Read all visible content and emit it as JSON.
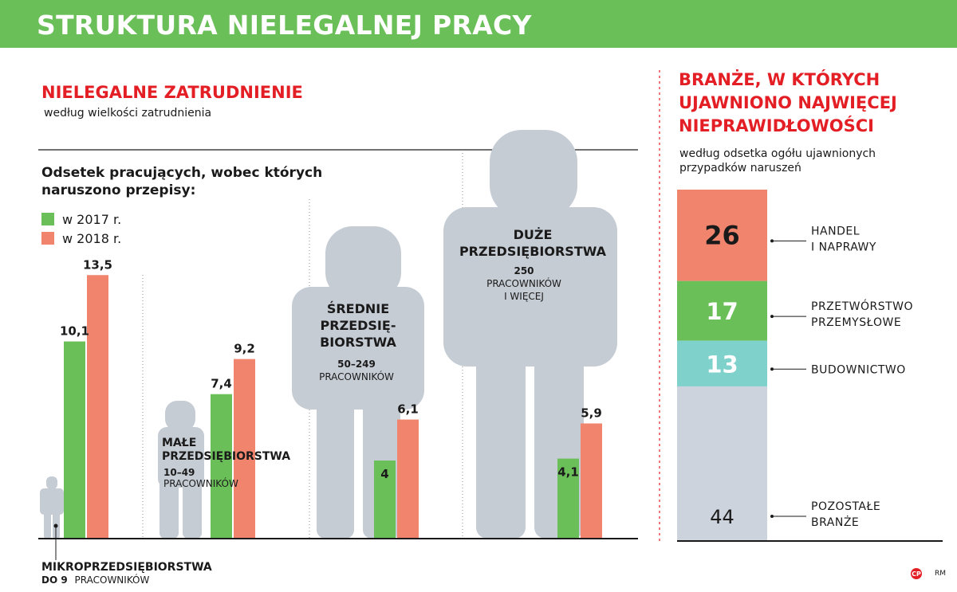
{
  "title": "STRUKTURA NIELEGALNEJ PRACY",
  "left": {
    "heading": "NIELEGALNE ZATRUDNIENIE",
    "subheading": "według wielkości zatrudnienia",
    "question": [
      "Odsetek pracujących, wobec których",
      "naruszono przepisy:"
    ],
    "legend": [
      {
        "label": "w 2017 r.",
        "color": "#6bbf59"
      },
      {
        "label": "w 2018 r.",
        "color": "#f0846c"
      }
    ]
  },
  "chart_data": [
    {
      "type": "bar",
      "categories": [
        "MIKROPRZEDSIĘBIORSTWA",
        "MAŁE PRZEDSIĘBIORSTWA",
        "ŚREDNIE PRZEDSIĘBIORSTWA",
        "DUŻE PRZEDSIĘBIORSTWA"
      ],
      "category_labels": [
        {
          "name": [
            "MIKROPRZEDSIĘBIORSTWA"
          ],
          "size": "DO 9",
          "unit": "PRACOWNIKÓW"
        },
        {
          "name": [
            "MAŁE",
            "PRZEDSIĘBIORSTWA"
          ],
          "size": "10–49",
          "unit": "PRACOWNIKÓW"
        },
        {
          "name": [
            "ŚREDNIE",
            "PRZEDSIĘ-",
            "BIORSTWA"
          ],
          "size": "50–249",
          "unit": "PRACOWNIKÓW"
        },
        {
          "name": [
            "DUŻE",
            "PRZEDSIĘBIORSTWA"
          ],
          "size": "250",
          "unit": [
            "PRACOWNIKÓW",
            "I WIĘCEJ"
          ]
        }
      ],
      "series": [
        {
          "name": "w 2017 r.",
          "values": [
            10.1,
            7.4,
            4,
            4.1
          ],
          "labels": [
            "10,1",
            "7,4",
            "4",
            "4,1"
          ],
          "color": "#6bbf59"
        },
        {
          "name": "w 2018 r.",
          "values": [
            13.5,
            9.2,
            6.1,
            5.9
          ],
          "labels": [
            "13,5",
            "9,2",
            "6,1",
            "5,9"
          ],
          "color": "#f0846c"
        }
      ],
      "ylim": [
        0,
        15
      ]
    },
    {
      "type": "bar",
      "subtype": "stacked-100",
      "title": [
        "BRANŻE, W KTÓRYCH",
        "UJAWNIONO NAJWIĘCEJ",
        "NIEPRAWIDŁOWOŚCI"
      ],
      "subtitle": [
        "według odsetka ogółu ujawnionych",
        "przypadków naruszeń"
      ],
      "segments": [
        {
          "label": [
            "HANDEL",
            "I NAPRAWY"
          ],
          "value": 26,
          "color": "#f0846c"
        },
        {
          "label": [
            "PRZETWÓRSTWO",
            "PRZEMYSŁOWE"
          ],
          "value": 17,
          "color": "#6bbf59"
        },
        {
          "label": [
            "BUDOWNICTWO"
          ],
          "value": 13,
          "color": "#7fd1cc"
        },
        {
          "label": [
            "POZOSTAŁE",
            "BRANŻE"
          ],
          "value": 44,
          "color": "#ccd3dc"
        }
      ]
    }
  ],
  "colors": {
    "banner": "#6bbf59",
    "banner_dark": "#3d8a3a",
    "accent": "#e31e24",
    "silhouette": "#c6ccd4"
  },
  "credits": {
    "logo": "CP",
    "author": "RM"
  }
}
